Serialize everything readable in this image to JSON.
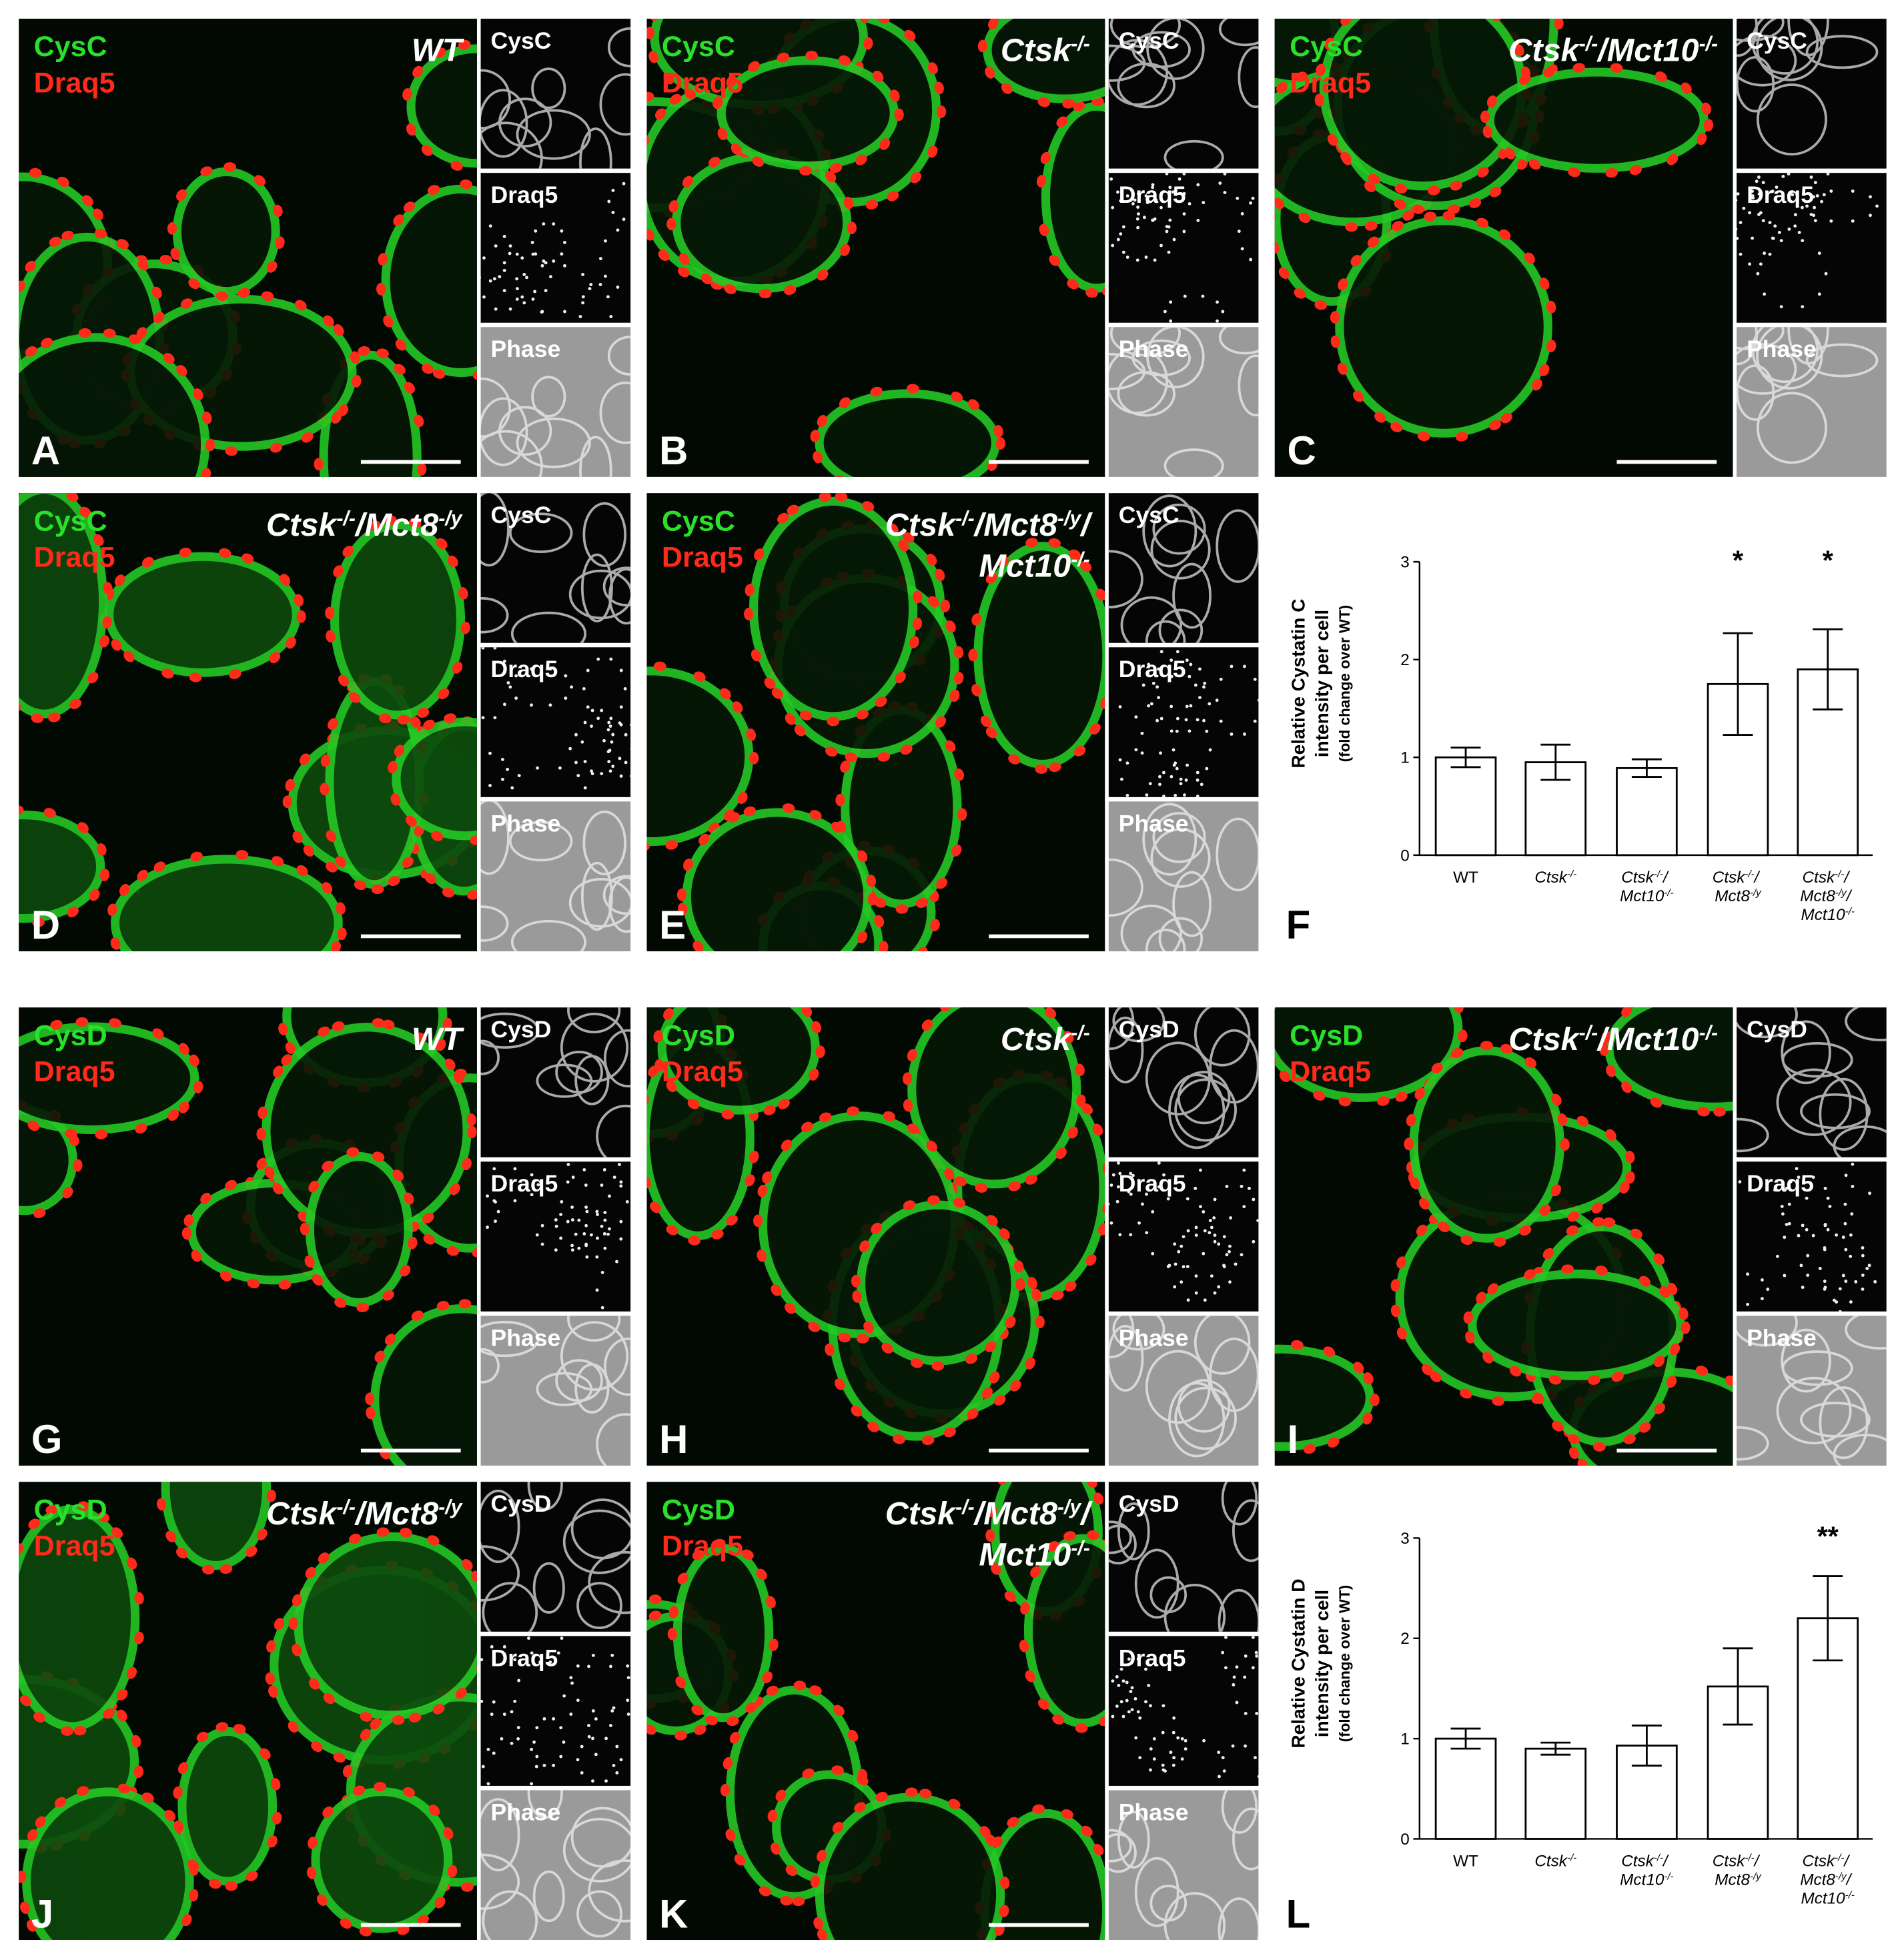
{
  "micrographs": [
    {
      "letter": "A",
      "stains": [
        "CysC",
        "Draq5"
      ],
      "genotype": [
        "WT"
      ],
      "channels": [
        "CysC",
        "Draq5",
        "Phase"
      ]
    },
    {
      "letter": "B",
      "stains": [
        "CysC",
        "Draq5"
      ],
      "genotype": [
        "Ctsk-/-"
      ],
      "channels": [
        "CysC",
        "Draq5",
        "Phase"
      ]
    },
    {
      "letter": "C",
      "stains": [
        "CysC",
        "Draq5"
      ],
      "genotype": [
        "Ctsk-/-/Mct10-/-"
      ],
      "channels": [
        "CysC",
        "Draq5",
        "Phase"
      ]
    },
    {
      "letter": "D",
      "stains": [
        "CysC",
        "Draq5"
      ],
      "genotype": [
        "Ctsk-/-/Mct8-/y"
      ],
      "channels": [
        "CysC",
        "Draq5",
        "Phase"
      ]
    },
    {
      "letter": "E",
      "stains": [
        "CysC",
        "Draq5"
      ],
      "genotype": [
        "Ctsk-/-/Mct8-/y/",
        "Mct10-/-"
      ],
      "channels": [
        "CysC",
        "Draq5",
        "Phase"
      ]
    },
    {
      "letter": "G",
      "stains": [
        "CysD",
        "Draq5"
      ],
      "genotype": [
        "WT"
      ],
      "channels": [
        "CysD",
        "Draq5",
        "Phase"
      ]
    },
    {
      "letter": "H",
      "stains": [
        "CysD",
        "Draq5"
      ],
      "genotype": [
        "Ctsk-/-"
      ],
      "channels": [
        "CysD",
        "Draq5",
        "Phase"
      ]
    },
    {
      "letter": "I",
      "stains": [
        "CysD",
        "Draq5"
      ],
      "genotype": [
        "Ctsk-/-/Mct10-/-"
      ],
      "channels": [
        "CysD",
        "Draq5",
        "Phase"
      ]
    },
    {
      "letter": "J",
      "stains": [
        "CysD",
        "Draq5"
      ],
      "genotype": [
        "Ctsk-/-/Mct8-/y"
      ],
      "channels": [
        "CysD",
        "Draq5",
        "Phase"
      ]
    },
    {
      "letter": "K",
      "stains": [
        "CysD",
        "Draq5"
      ],
      "genotype": [
        "Ctsk-/-/Mct8-/y/",
        "Mct10-/-"
      ],
      "channels": [
        "CysD",
        "Draq5",
        "Phase"
      ]
    }
  ],
  "chart_data": [
    {
      "type": "bar",
      "letter": "F",
      "ylabel": [
        "Relative Cystatin C",
        "intensity per cell"
      ],
      "ylabel_note": "(fold change over WT)",
      "categories": [
        "WT",
        "Ctsk-/-",
        "Ctsk-/-/ Mct10-/-",
        "Ctsk-/-/ Mct8-/y",
        "Ctsk-/-/ Mct8-/y/ Mct10-/-"
      ],
      "values": [
        1.0,
        0.95,
        0.89,
        1.75,
        1.9
      ],
      "errors": [
        0.1,
        0.18,
        0.09,
        0.52,
        0.41
      ],
      "significance": [
        null,
        null,
        null,
        "*",
        "*"
      ],
      "color": "#ffffff",
      "ylim": [
        0,
        3
      ],
      "yticks": [
        0,
        1,
        2,
        3
      ]
    },
    {
      "type": "bar",
      "letter": "L",
      "ylabel": [
        "Relative Cystatin D",
        "intensity per cell"
      ],
      "ylabel_note": "(fold change over WT)",
      "categories": [
        "WT",
        "Ctsk-/-",
        "Ctsk-/-/ Mct10-/-",
        "Ctsk-/-/ Mct8-/y",
        "Ctsk-/-/ Mct8-/y/ Mct10-/-"
      ],
      "values": [
        1.0,
        0.9,
        0.93,
        1.52,
        2.2
      ],
      "errors": [
        0.1,
        0.06,
        0.2,
        0.38,
        0.42
      ],
      "significance": [
        null,
        null,
        null,
        null,
        "**"
      ],
      "color": "#ffffff",
      "ylim": [
        0,
        3
      ],
      "yticks": [
        0,
        1,
        2,
        3
      ]
    }
  ]
}
